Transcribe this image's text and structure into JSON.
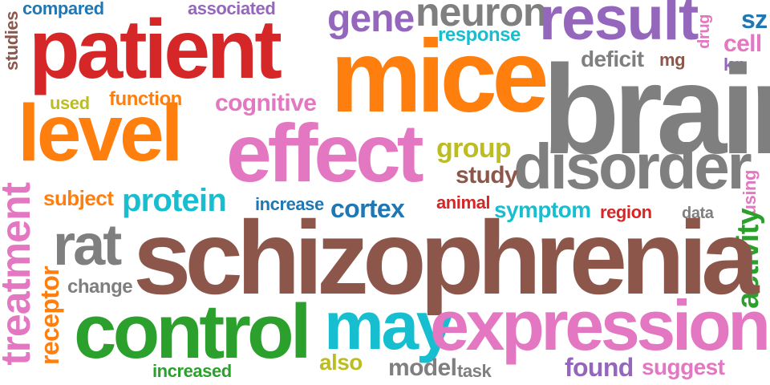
{
  "words": {
    "schizophrenia": {
      "text": "schizophrenia",
      "color": "#8c564b"
    },
    "brain": {
      "text": "brain",
      "color": "#7f7f7f"
    },
    "mice": {
      "text": "mice",
      "color": "#ff7f0e"
    },
    "patient": {
      "text": "patient",
      "color": "#d62728"
    },
    "level": {
      "text": "level",
      "color": "#ff7f0e"
    },
    "effect": {
      "text": "effect",
      "color": "#e377c2"
    },
    "disorder": {
      "text": "disorder",
      "color": "#7f7f7f"
    },
    "control": {
      "text": "control",
      "color": "#2ca02c"
    },
    "expression": {
      "text": "expression",
      "color": "#e377c2"
    },
    "may": {
      "text": "may",
      "color": "#17becf"
    },
    "result": {
      "text": "result",
      "color": "#9467bd"
    },
    "treatment": {
      "text": "treatment",
      "color": "#e377c2"
    },
    "rat": {
      "text": "rat",
      "color": "#7f7f7f"
    },
    "neuron": {
      "text": "neuron",
      "color": "#7f7f7f"
    },
    "gene": {
      "text": "gene",
      "color": "#9467bd"
    },
    "protein": {
      "text": "protein",
      "color": "#17becf"
    },
    "activity": {
      "text": "activity",
      "color": "#2ca02c"
    },
    "cortex": {
      "text": "cortex",
      "color": "#1f77b4"
    },
    "cognitive": {
      "text": "cognitive",
      "color": "#e377c2"
    },
    "group": {
      "text": "group",
      "color": "#bcbd22"
    },
    "receptor": {
      "text": "receptor",
      "color": "#ff7f0e"
    },
    "subject": {
      "text": "subject",
      "color": "#ff7f0e"
    },
    "symptom": {
      "text": "symptom",
      "color": "#17becf"
    },
    "response": {
      "text": "response",
      "color": "#17becf"
    },
    "deficit": {
      "text": "deficit",
      "color": "#7f7f7f"
    },
    "study": {
      "text": "study",
      "color": "#8c564b"
    },
    "function": {
      "text": "function",
      "color": "#ff7f0e"
    },
    "cell": {
      "text": "cell",
      "color": "#e377c2"
    },
    "sz": {
      "text": "sz",
      "color": "#1f77b4"
    },
    "found": {
      "text": "found",
      "color": "#9467bd"
    },
    "suggest": {
      "text": "suggest",
      "color": "#e377c2"
    },
    "model": {
      "text": "model",
      "color": "#7f7f7f"
    },
    "increase": {
      "text": "increase",
      "color": "#1f77b4"
    },
    "increased": {
      "text": "increased",
      "color": "#2ca02c"
    },
    "region": {
      "text": "region",
      "color": "#d62728"
    },
    "animal": {
      "text": "animal",
      "color": "#d62728"
    },
    "compared": {
      "text": "compared",
      "color": "#1f77b4"
    },
    "associated": {
      "text": "associated",
      "color": "#9467bd"
    },
    "studies": {
      "text": "studies",
      "color": "#8c564b"
    },
    "used": {
      "text": "used",
      "color": "#bcbd22"
    },
    "change": {
      "text": "change",
      "color": "#7f7f7f"
    },
    "also": {
      "text": "also",
      "color": "#bcbd22"
    },
    "task": {
      "text": "task",
      "color": "#7f7f7f"
    },
    "data": {
      "text": "data",
      "color": "#7f7f7f"
    },
    "using": {
      "text": "using",
      "color": "#e377c2"
    },
    "drug": {
      "text": "drug",
      "color": "#e377c2"
    },
    "mg": {
      "text": "mg",
      "color": "#8c564b"
    },
    "kg": {
      "text": "kg",
      "color": "#9467bd"
    }
  }
}
